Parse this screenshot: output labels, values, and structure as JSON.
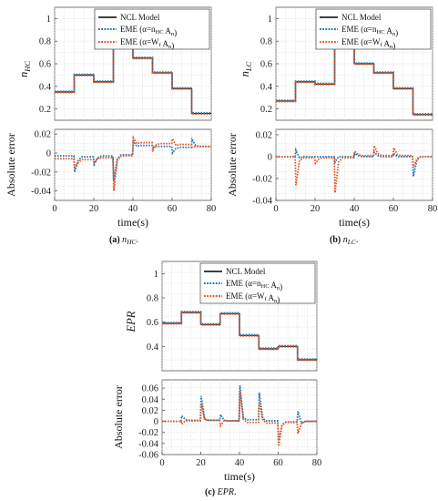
{
  "colors": {
    "ncl": "#000000",
    "eme_hc": "#1f77b4",
    "eme_wf": "#e8541e"
  },
  "chart_data": [
    {
      "type": "line",
      "caption_letter": "(a)",
      "caption_var": "n",
      "caption_sub": "HC",
      "caption_end": ".",
      "ylabel_main": "n",
      "ylabel_sub": "HC",
      "err_ylabel": "Absolute error",
      "xlabel": "time(s)",
      "xlim": [
        0,
        80
      ],
      "xticks": [
        0,
        20,
        40,
        60,
        80
      ],
      "ylim": [
        0.1,
        1.1
      ],
      "yticks": [
        0.2,
        0.4,
        0.6,
        0.8,
        1
      ],
      "ytick_labels": [
        "0.2",
        "0.4",
        "0.6",
        "0.8",
        "1"
      ],
      "err_ylim": [
        -0.05,
        0.025
      ],
      "err_yticks": [
        -0.04,
        -0.02,
        0,
        0.02
      ],
      "err_ytick_labels": [
        "-0.04",
        "-0.02",
        "0",
        "0.02"
      ],
      "legend": [
        "NCL Model",
        "EME (α=n_HC A_n)",
        "EME (α=W_f A_n)"
      ],
      "series": [
        {
          "name": "NCL Model",
          "x": [
            0,
            10,
            10,
            20,
            20,
            30,
            30,
            40,
            40,
            50,
            50,
            60,
            60,
            70,
            70,
            80
          ],
          "values": [
            0.35,
            0.35,
            0.5,
            0.5,
            0.44,
            0.44,
            0.77,
            0.77,
            0.65,
            0.65,
            0.52,
            0.52,
            0.38,
            0.38,
            0.16,
            0.16
          ]
        }
      ],
      "error_series": [
        {
          "name": "EME (α=n_HC A_n)",
          "x": [
            0,
            9.8,
            10.2,
            12,
            14,
            19.8,
            20.2,
            22,
            24,
            29.8,
            30.2,
            32,
            34,
            39.8,
            40.2,
            42,
            44,
            49.8,
            50.2,
            52,
            54,
            59.8,
            60.2,
            62,
            64,
            69.8,
            70.2,
            72,
            74,
            80
          ],
          "values": [
            -0.003,
            -0.003,
            -0.02,
            -0.008,
            -0.004,
            -0.004,
            -0.012,
            -0.005,
            -0.003,
            -0.003,
            -0.03,
            -0.006,
            -0.002,
            -0.002,
            0.012,
            0.007,
            0.008,
            0.008,
            0.006,
            0.007,
            0.007,
            0.007,
            0.0,
            0.005,
            0.006,
            0.006,
            0.014,
            0.008,
            0.007,
            0.007
          ]
        },
        {
          "name": "EME (α=W_f A_n)",
          "x": [
            0,
            9.8,
            10.2,
            12,
            14,
            19.8,
            20.2,
            22,
            24,
            29.8,
            30.2,
            32,
            34,
            39.8,
            40.2,
            42,
            44,
            49.8,
            50.2,
            52,
            54,
            59.8,
            60.2,
            62,
            64,
            69.8,
            70.2,
            72,
            74,
            80
          ],
          "values": [
            -0.006,
            -0.006,
            -0.015,
            -0.01,
            -0.007,
            -0.007,
            -0.01,
            -0.006,
            -0.005,
            -0.005,
            -0.04,
            -0.008,
            -0.003,
            -0.003,
            0.016,
            0.01,
            0.011,
            0.011,
            0.003,
            0.009,
            0.01,
            0.01,
            0.015,
            0.008,
            0.009,
            0.009,
            0.006,
            0.007,
            0.007,
            0.007
          ]
        }
      ]
    },
    {
      "type": "line",
      "caption_letter": "(b)",
      "caption_var": "n",
      "caption_sub": "LC",
      "caption_end": ".",
      "ylabel_main": "n",
      "ylabel_sub": "LC",
      "err_ylabel": "Absolute error",
      "xlabel": "time(s)",
      "xlim": [
        0,
        80
      ],
      "xticks": [
        0,
        20,
        40,
        60,
        80
      ],
      "ylim": [
        0.1,
        1.1
      ],
      "yticks": [
        0.2,
        0.4,
        0.6,
        0.8,
        1
      ],
      "ytick_labels": [
        "0.2",
        "0.4",
        "0.6",
        "0.8",
        "1"
      ],
      "err_ylim": [
        -0.04,
        0.025
      ],
      "err_yticks": [
        -0.04,
        -0.02,
        0,
        0.02
      ],
      "err_ytick_labels": [
        "-0.04",
        "-0.02",
        "0",
        "0.02"
      ],
      "legend": [
        "NCL Model",
        "EME (α=n_HC A_n)",
        "EME (α=W_f A_n)"
      ],
      "series": [
        {
          "name": "NCL Model",
          "x": [
            0,
            10,
            10,
            20,
            20,
            30,
            30,
            40,
            40,
            50,
            50,
            60,
            60,
            70,
            70,
            80
          ],
          "values": [
            0.27,
            0.27,
            0.44,
            0.44,
            0.42,
            0.42,
            0.74,
            0.74,
            0.6,
            0.6,
            0.52,
            0.52,
            0.38,
            0.38,
            0.15,
            0.15
          ]
        }
      ],
      "error_series": [
        {
          "name": "EME (α=n_HC A_n)",
          "x": [
            0,
            9.8,
            10.2,
            12,
            14,
            19.8,
            20.2,
            22,
            24,
            29.8,
            30.2,
            32,
            34,
            39.8,
            40.2,
            42,
            44,
            49.8,
            50.2,
            52,
            54,
            59.8,
            60.2,
            62,
            64,
            69.8,
            70.2,
            72,
            74,
            80
          ],
          "values": [
            0.0,
            0.0,
            0.006,
            -0.001,
            0.0,
            0.0,
            0.0,
            0.0,
            0.0,
            0.0,
            -0.005,
            0.0,
            0.0,
            0.0,
            0.003,
            0.001,
            0.0,
            0.0,
            0.004,
            0.001,
            0.0,
            0.0,
            0.003,
            0.0,
            0.0,
            0.0,
            -0.018,
            -0.003,
            0.0,
            0.0
          ]
        },
        {
          "name": "EME (α=W_f A_n)",
          "x": [
            0,
            9.8,
            10.2,
            12,
            14,
            19.8,
            20.2,
            22,
            24,
            29.8,
            30.2,
            32,
            34,
            39.8,
            40.2,
            42,
            44,
            49.8,
            50.2,
            52,
            54,
            59.8,
            60.2,
            62,
            64,
            69.8,
            70.2,
            72,
            74,
            80
          ],
          "values": [
            0.0,
            0.0,
            -0.026,
            -0.004,
            -0.001,
            -0.001,
            -0.006,
            -0.002,
            -0.001,
            -0.001,
            -0.033,
            -0.005,
            -0.001,
            -0.001,
            0.005,
            0.002,
            0.001,
            0.001,
            0.01,
            0.003,
            0.001,
            0.001,
            0.008,
            0.002,
            0.001,
            0.001,
            -0.01,
            -0.002,
            0.0,
            0.0
          ]
        }
      ]
    },
    {
      "type": "line",
      "caption_letter": "(c)",
      "caption_var": "EPR",
      "caption_sub": "",
      "caption_end": ".",
      "ylabel_main": "EPR",
      "ylabel_sub": "",
      "err_ylabel": "Absolute error",
      "xlabel": "time(s)",
      "xlim": [
        0,
        80
      ],
      "xticks": [
        0,
        20,
        40,
        60,
        80
      ],
      "ylim": [
        0.2,
        1.1
      ],
      "yticks": [
        0.4,
        0.6,
        0.8,
        1
      ],
      "ytick_labels": [
        "0.4",
        "0.6",
        "0.8",
        "1"
      ],
      "err_ylim": [
        -0.06,
        0.075
      ],
      "err_yticks": [
        -0.06,
        -0.04,
        -0.02,
        0,
        0.02,
        0.04,
        0.06
      ],
      "err_ytick_labels": [
        "-0.06",
        "-0.04",
        "-0.02",
        "0",
        "0.02",
        "0.04",
        "0.06"
      ],
      "legend": [
        "NCL Model",
        "EME (α=n_HC A_n)",
        "EME (α=W_f A_n)"
      ],
      "series": [
        {
          "name": "NCL Model",
          "x": [
            0,
            10,
            10,
            20,
            20,
            30,
            30,
            40,
            40,
            50,
            50,
            60,
            60,
            70,
            70,
            80
          ],
          "values": [
            0.59,
            0.59,
            0.68,
            0.68,
            0.58,
            0.58,
            0.67,
            0.67,
            0.49,
            0.49,
            0.38,
            0.38,
            0.4,
            0.4,
            0.29,
            0.29
          ]
        }
      ],
      "error_series": [
        {
          "name": "EME (α=n_HC A_n)",
          "x": [
            0,
            9.8,
            10.2,
            12,
            14,
            19.8,
            20.2,
            22,
            24,
            29.8,
            30.2,
            32,
            34,
            39.8,
            40.2,
            42,
            44,
            49.8,
            50.2,
            52,
            54,
            59.8,
            60.2,
            62,
            64,
            69.8,
            70.2,
            72,
            74,
            80
          ],
          "values": [
            0.0,
            0.0,
            0.01,
            0.003,
            0.002,
            0.002,
            0.046,
            0.004,
            0.002,
            0.002,
            0.012,
            0.002,
            0.001,
            0.001,
            0.065,
            0.006,
            0.003,
            0.003,
            0.052,
            0.005,
            0.001,
            0.001,
            -0.035,
            -0.006,
            -0.001,
            -0.001,
            0.018,
            -0.003,
            0.0,
            0.0
          ]
        },
        {
          "name": "EME (α=W_f A_n)",
          "x": [
            0,
            9.8,
            10.2,
            12,
            14,
            19.8,
            20.2,
            22,
            24,
            29.8,
            30.2,
            32,
            34,
            39.8,
            40.2,
            42,
            44,
            49.8,
            50.2,
            52,
            54,
            59.8,
            60.2,
            62,
            64,
            69.8,
            70.2,
            72,
            74,
            80
          ],
          "values": [
            0.0,
            0.0,
            -0.005,
            0.001,
            0.001,
            0.001,
            0.032,
            0.003,
            0.002,
            0.002,
            -0.008,
            0.001,
            0.001,
            0.001,
            0.055,
            0.004,
            -0.002,
            -0.002,
            0.035,
            0.003,
            -0.003,
            -0.003,
            -0.045,
            -0.007,
            -0.002,
            -0.002,
            -0.022,
            -0.004,
            0.0,
            0.0
          ]
        }
      ]
    }
  ]
}
